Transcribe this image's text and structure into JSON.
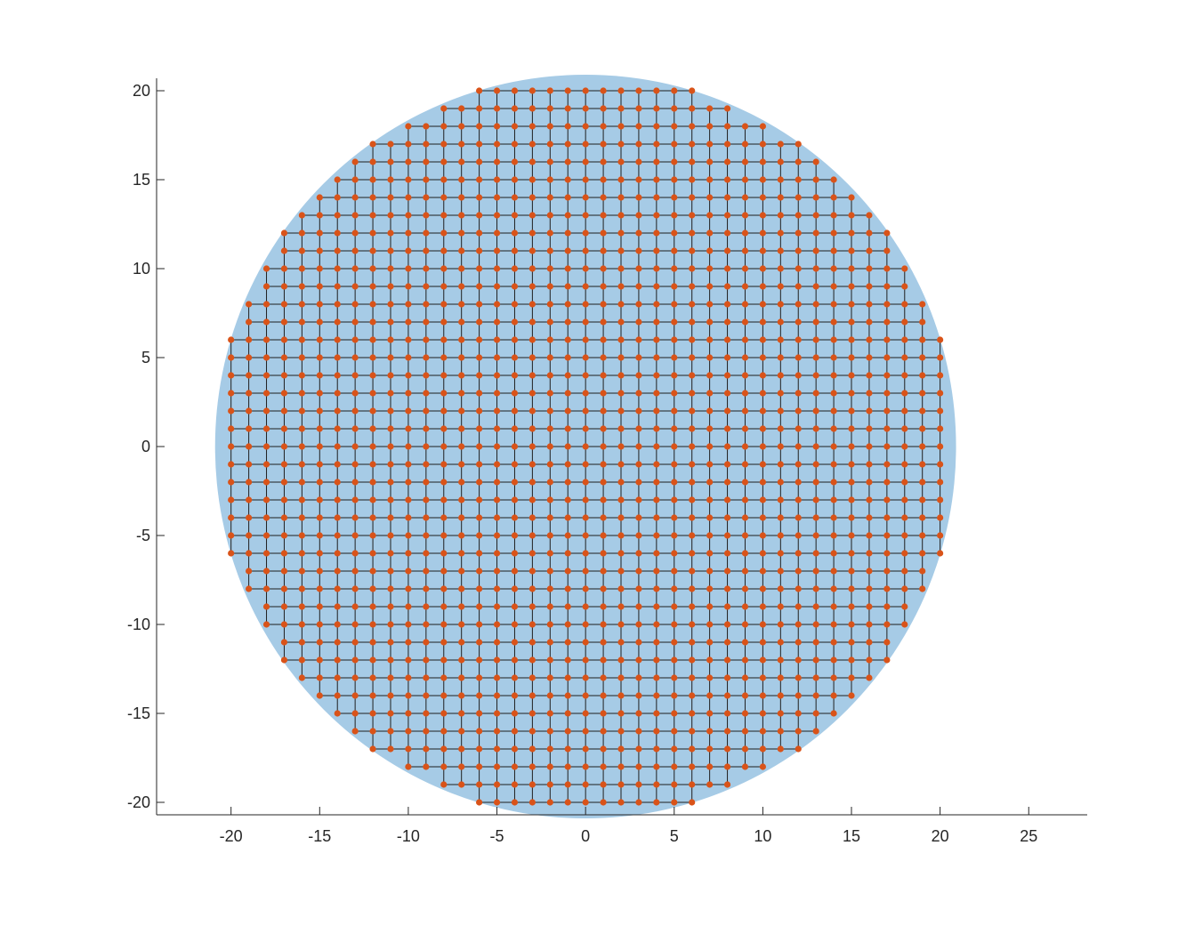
{
  "chart_data": {
    "type": "scatter",
    "title": "",
    "xlabel": "",
    "ylabel": "",
    "xlim": [
      -24.2,
      28.3
    ],
    "ylim": [
      -20.7,
      20.7
    ],
    "grid": false,
    "legend": "none",
    "x_ticks": [
      -20,
      -15,
      -10,
      -5,
      0,
      5,
      10,
      15,
      20,
      25
    ],
    "x_tick_labels": [
      "-20",
      "-15",
      "-10",
      "-5",
      "0",
      "5",
      "10",
      "15",
      "20",
      "25"
    ],
    "y_ticks": [
      -20,
      -15,
      -10,
      -5,
      0,
      5,
      10,
      15,
      20
    ],
    "y_tick_labels": [
      "-20",
      "-15",
      "-10",
      "-5",
      "0",
      "5",
      "10",
      "15",
      "20"
    ],
    "disk": {
      "center": [
        0,
        0
      ],
      "radius": 20.9,
      "color": "#a6cbe6"
    },
    "lattice": {
      "description_source": "integer points with x^2 + y^2 <= 20.9^2, connected to unit-distance neighbours",
      "radius": 20.9,
      "node_color": "#d95319",
      "edge_color": "#1f1f1f",
      "rows": [
        {
          "y": 20,
          "x_min": -6,
          "x_max": 6
        },
        {
          "y": 19,
          "x_min": -8,
          "x_max": 8
        },
        {
          "y": 18,
          "x_min": -10,
          "x_max": 10
        },
        {
          "y": 17,
          "x_min": -12,
          "x_max": 12
        },
        {
          "y": 16,
          "x_min": -13,
          "x_max": 13
        },
        {
          "y": 15,
          "x_min": -14,
          "x_max": 14
        },
        {
          "y": 14,
          "x_min": -15,
          "x_max": 15
        },
        {
          "y": 13,
          "x_min": -16,
          "x_max": 16
        },
        {
          "y": 12,
          "x_min": -17,
          "x_max": 17
        },
        {
          "y": 11,
          "x_min": -17,
          "x_max": 17
        },
        {
          "y": 10,
          "x_min": -18,
          "x_max": 18
        },
        {
          "y": 9,
          "x_min": -18,
          "x_max": 18
        },
        {
          "y": 8,
          "x_min": -19,
          "x_max": 19
        },
        {
          "y": 7,
          "x_min": -19,
          "x_max": 19
        },
        {
          "y": 6,
          "x_min": -20,
          "x_max": 20
        },
        {
          "y": 5,
          "x_min": -20,
          "x_max": 20
        },
        {
          "y": 4,
          "x_min": -20,
          "x_max": 20
        },
        {
          "y": 3,
          "x_min": -20,
          "x_max": 20
        },
        {
          "y": 2,
          "x_min": -20,
          "x_max": 20
        },
        {
          "y": 1,
          "x_min": -20,
          "x_max": 20
        },
        {
          "y": 0,
          "x_min": -20,
          "x_max": 20
        },
        {
          "y": -1,
          "x_min": -20,
          "x_max": 20
        },
        {
          "y": -2,
          "x_min": -20,
          "x_max": 20
        },
        {
          "y": -3,
          "x_min": -20,
          "x_max": 20
        },
        {
          "y": -4,
          "x_min": -20,
          "x_max": 20
        },
        {
          "y": -5,
          "x_min": -20,
          "x_max": 20
        },
        {
          "y": -6,
          "x_min": -20,
          "x_max": 20
        },
        {
          "y": -7,
          "x_min": -19,
          "x_max": 19
        },
        {
          "y": -8,
          "x_min": -19,
          "x_max": 19
        },
        {
          "y": -9,
          "x_min": -18,
          "x_max": 18
        },
        {
          "y": -10,
          "x_min": -18,
          "x_max": 18
        },
        {
          "y": -11,
          "x_min": -17,
          "x_max": 17
        },
        {
          "y": -12,
          "x_min": -17,
          "x_max": 17
        },
        {
          "y": -13,
          "x_min": -16,
          "x_max": 16
        },
        {
          "y": -14,
          "x_min": -15,
          "x_max": 15
        },
        {
          "y": -15,
          "x_min": -14,
          "x_max": 14
        },
        {
          "y": -16,
          "x_min": -13,
          "x_max": 13
        },
        {
          "y": -17,
          "x_min": -12,
          "x_max": 12
        },
        {
          "y": -18,
          "x_min": -10,
          "x_max": 10
        },
        {
          "y": -19,
          "x_min": -8,
          "x_max": 8
        },
        {
          "y": -20,
          "x_min": -6,
          "x_max": 6
        }
      ]
    }
  }
}
